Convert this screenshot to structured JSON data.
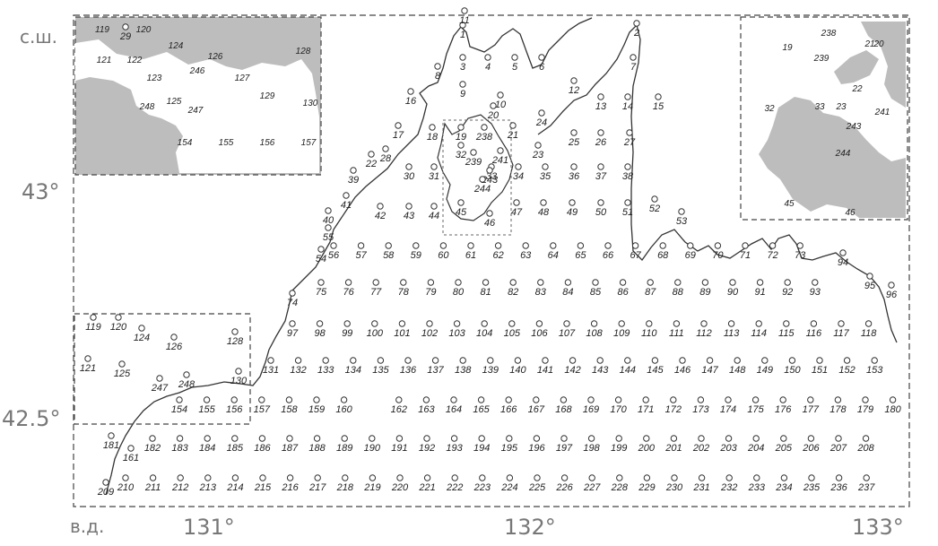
{
  "axis": {
    "lat_unit": "с.ш.",
    "lon_unit": "в.д.",
    "lat_labels": [
      "43°",
      "42.5°"
    ],
    "lon_labels": [
      "131°",
      "132°",
      "133°"
    ]
  },
  "colors": {
    "land": "#bdbdbd",
    "water": "#ffffff",
    "coast": "#333333",
    "frame": "#444444"
  },
  "inset_left_labels": [
    "119",
    "120",
    "121",
    "122",
    "123",
    "124",
    "125",
    "126",
    "127",
    "128",
    "129",
    "130",
    "154",
    "155",
    "156",
    "157",
    "246",
    "247",
    "248"
  ],
  "inset_right_labels": [
    "19",
    "20",
    "21",
    "22",
    "23",
    "32",
    "33",
    "45",
    "46",
    "238",
    "239",
    "241",
    "243",
    "244"
  ],
  "stations": [
    {
      "label": "1"
    },
    {
      "label": "2"
    },
    {
      "label": "3"
    },
    {
      "label": "4"
    },
    {
      "label": "5"
    },
    {
      "label": "6"
    },
    {
      "label": "7"
    },
    {
      "label": "8"
    },
    {
      "label": "9"
    },
    {
      "label": "10"
    },
    {
      "label": "11"
    },
    {
      "label": "12"
    },
    {
      "label": "13"
    },
    {
      "label": "14"
    },
    {
      "label": "15"
    },
    {
      "label": "16"
    },
    {
      "label": "17"
    },
    {
      "label": "18"
    },
    {
      "label": "19"
    },
    {
      "label": "20"
    },
    {
      "label": "21"
    },
    {
      "label": "22"
    },
    {
      "label": "23"
    },
    {
      "label": "24"
    },
    {
      "label": "25"
    },
    {
      "label": "26"
    },
    {
      "label": "27"
    },
    {
      "label": "28"
    },
    {
      "label": "29"
    },
    {
      "label": "30"
    },
    {
      "label": "31"
    },
    {
      "label": "32"
    },
    {
      "label": "33"
    },
    {
      "label": "34"
    },
    {
      "label": "35"
    },
    {
      "label": "36"
    },
    {
      "label": "37"
    },
    {
      "label": "38"
    },
    {
      "label": "39"
    },
    {
      "label": "40"
    },
    {
      "label": "41"
    },
    {
      "label": "42"
    },
    {
      "label": "43"
    },
    {
      "label": "44"
    },
    {
      "label": "45"
    },
    {
      "label": "46"
    },
    {
      "label": "47"
    },
    {
      "label": "48"
    },
    {
      "label": "49"
    },
    {
      "label": "50"
    },
    {
      "label": "51"
    },
    {
      "label": "52"
    },
    {
      "label": "53"
    },
    {
      "label": "54"
    },
    {
      "label": "55"
    },
    {
      "label": "56"
    },
    {
      "label": "57"
    },
    {
      "label": "58"
    },
    {
      "label": "59"
    },
    {
      "label": "60"
    },
    {
      "label": "61"
    },
    {
      "label": "62"
    },
    {
      "label": "63"
    },
    {
      "label": "64"
    },
    {
      "label": "65"
    },
    {
      "label": "66"
    },
    {
      "label": "67"
    },
    {
      "label": "68"
    },
    {
      "label": "69"
    },
    {
      "label": "70"
    },
    {
      "label": "71"
    },
    {
      "label": "72"
    },
    {
      "label": "73"
    },
    {
      "label": "74"
    },
    {
      "label": "75"
    },
    {
      "label": "76"
    },
    {
      "label": "77"
    },
    {
      "label": "78"
    },
    {
      "label": "79"
    },
    {
      "label": "80"
    },
    {
      "label": "81"
    },
    {
      "label": "82"
    },
    {
      "label": "83"
    },
    {
      "label": "84"
    },
    {
      "label": "85"
    },
    {
      "label": "86"
    },
    {
      "label": "87"
    },
    {
      "label": "88"
    },
    {
      "label": "89"
    },
    {
      "label": "90"
    },
    {
      "label": "91"
    },
    {
      "label": "92"
    },
    {
      "label": "93"
    },
    {
      "label": "94"
    },
    {
      "label": "95"
    },
    {
      "label": "96"
    },
    {
      "label": "97"
    },
    {
      "label": "98"
    },
    {
      "label": "99"
    },
    {
      "label": "100"
    },
    {
      "label": "101"
    },
    {
      "label": "102"
    },
    {
      "label": "103"
    },
    {
      "label": "104"
    },
    {
      "label": "105"
    },
    {
      "label": "106"
    },
    {
      "label": "107"
    },
    {
      "label": "108"
    },
    {
      "label": "109"
    },
    {
      "label": "110"
    },
    {
      "label": "111"
    },
    {
      "label": "112"
    },
    {
      "label": "113"
    },
    {
      "label": "114"
    },
    {
      "label": "115"
    },
    {
      "label": "116"
    },
    {
      "label": "117"
    },
    {
      "label": "118"
    },
    {
      "label": "119"
    },
    {
      "label": "120"
    },
    {
      "label": "121"
    },
    {
      "label": "124"
    },
    {
      "label": "125"
    },
    {
      "label": "126"
    },
    {
      "label": "128"
    },
    {
      "label": "130"
    },
    {
      "label": "131"
    },
    {
      "label": "132"
    },
    {
      "label": "133"
    },
    {
      "label": "134"
    },
    {
      "label": "135"
    },
    {
      "label": "136"
    },
    {
      "label": "137"
    },
    {
      "label": "138"
    },
    {
      "label": "139"
    },
    {
      "label": "140"
    },
    {
      "label": "141"
    },
    {
      "label": "142"
    },
    {
      "label": "143"
    },
    {
      "label": "144"
    },
    {
      "label": "145"
    },
    {
      "label": "146"
    },
    {
      "label": "147"
    },
    {
      "label": "148"
    },
    {
      "label": "149"
    },
    {
      "label": "150"
    },
    {
      "label": "151"
    },
    {
      "label": "152"
    },
    {
      "label": "153"
    },
    {
      "label": "154"
    },
    {
      "label": "155"
    },
    {
      "label": "156"
    },
    {
      "label": "157"
    },
    {
      "label": "158"
    },
    {
      "label": "159"
    },
    {
      "label": "160"
    },
    {
      "label": "161"
    },
    {
      "label": "162"
    },
    {
      "label": "163"
    },
    {
      "label": "164"
    },
    {
      "label": "165"
    },
    {
      "label": "166"
    },
    {
      "label": "167"
    },
    {
      "label": "168"
    },
    {
      "label": "169"
    },
    {
      "label": "170"
    },
    {
      "label": "171"
    },
    {
      "label": "172"
    },
    {
      "label": "173"
    },
    {
      "label": "174"
    },
    {
      "label": "175"
    },
    {
      "label": "176"
    },
    {
      "label": "177"
    },
    {
      "label": "178"
    },
    {
      "label": "179"
    },
    {
      "label": "180"
    },
    {
      "label": "181"
    },
    {
      "label": "182"
    },
    {
      "label": "183"
    },
    {
      "label": "184"
    },
    {
      "label": "185"
    },
    {
      "label": "186"
    },
    {
      "label": "187"
    },
    {
      "label": "188"
    },
    {
      "label": "189"
    },
    {
      "label": "190"
    },
    {
      "label": "191"
    },
    {
      "label": "192"
    },
    {
      "label": "193"
    },
    {
      "label": "194"
    },
    {
      "label": "195"
    },
    {
      "label": "196"
    },
    {
      "label": "197"
    },
    {
      "label": "198"
    },
    {
      "label": "199"
    },
    {
      "label": "200"
    },
    {
      "label": "201"
    },
    {
      "label": "202"
    },
    {
      "label": "203"
    },
    {
      "label": "204"
    },
    {
      "label": "205"
    },
    {
      "label": "206"
    },
    {
      "label": "207"
    },
    {
      "label": "208"
    },
    {
      "label": "209"
    },
    {
      "label": "210"
    },
    {
      "label": "211"
    },
    {
      "label": "212"
    },
    {
      "label": "213"
    },
    {
      "label": "214"
    },
    {
      "label": "215"
    },
    {
      "label": "216"
    },
    {
      "label": "217"
    },
    {
      "label": "218"
    },
    {
      "label": "219"
    },
    {
      "label": "220"
    },
    {
      "label": "221"
    },
    {
      "label": "222"
    },
    {
      "label": "223"
    },
    {
      "label": "224"
    },
    {
      "label": "225"
    },
    {
      "label": "226"
    },
    {
      "label": "227"
    },
    {
      "label": "228"
    },
    {
      "label": "229"
    },
    {
      "label": "230"
    },
    {
      "label": "231"
    },
    {
      "label": "232"
    },
    {
      "label": "233"
    },
    {
      "label": "234"
    },
    {
      "label": "235"
    },
    {
      "label": "236"
    },
    {
      "label": "237"
    },
    {
      "label": "238"
    },
    {
      "label": "239"
    },
    {
      "label": "241"
    },
    {
      "label": "243"
    },
    {
      "label": "244"
    },
    {
      "label": "247"
    },
    {
      "label": "248"
    }
  ]
}
